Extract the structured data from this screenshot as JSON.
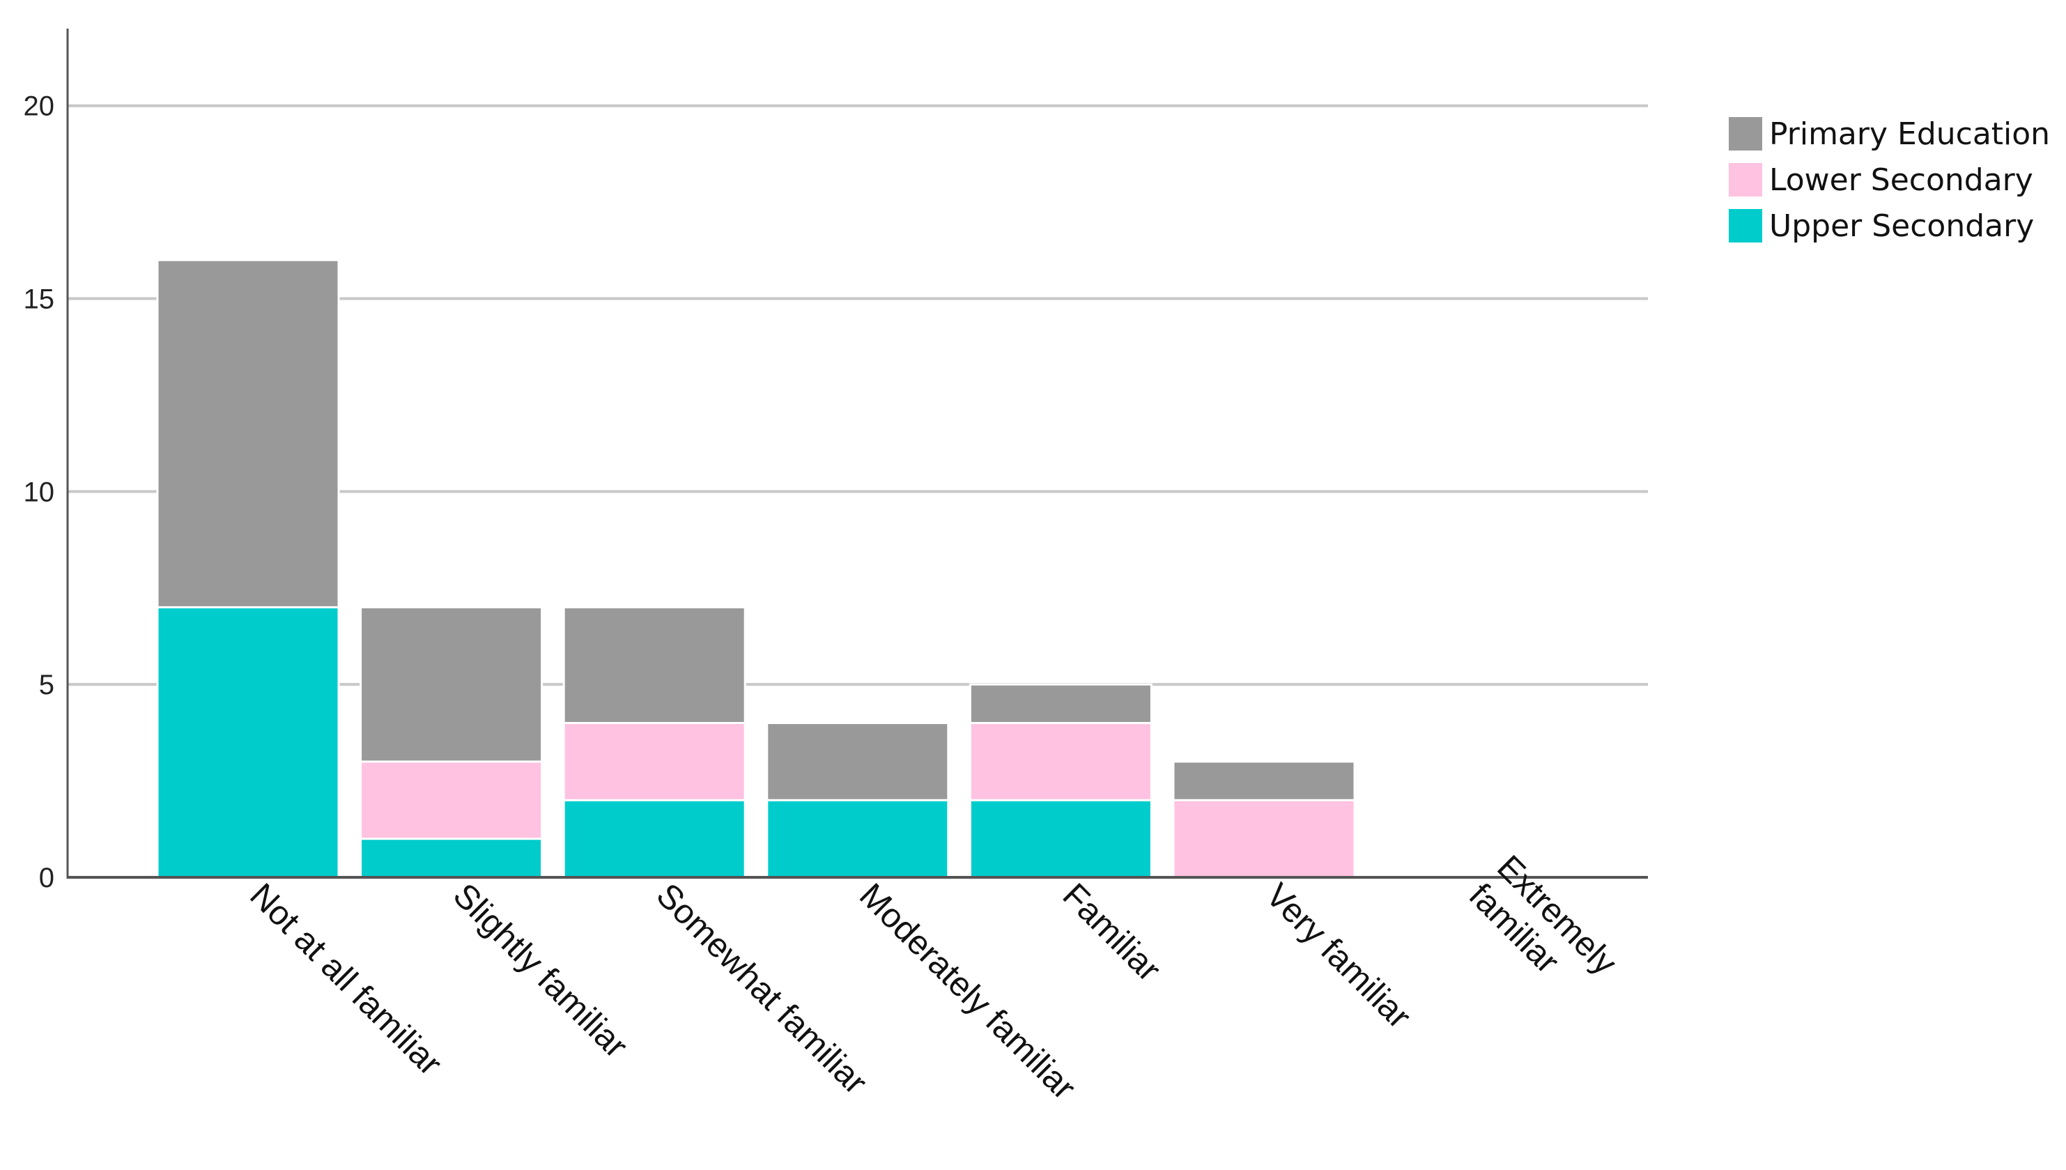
{
  "chart_data": {
    "type": "bar",
    "stacked": true,
    "title": "",
    "xlabel": "",
    "ylabel": "",
    "ylim": [
      0,
      22
    ],
    "yticks": [
      0,
      5,
      10,
      15,
      20
    ],
    "grid": "horizontal",
    "legend_position": "top-right",
    "categories": [
      "Not at all familiar",
      "Slightly familiar",
      "Somewhat familiar",
      "Moderately familiar",
      "Familiar",
      "Very familiar",
      "Extremely familiar"
    ],
    "category_lines": [
      [
        "Not at all familiar"
      ],
      [
        "Slightly familiar"
      ],
      [
        "Somewhat familiar"
      ],
      [
        "Moderately familiar"
      ],
      [
        "Familiar"
      ],
      [
        "Very familiar"
      ],
      [
        "Extremely",
        "familiar"
      ]
    ],
    "series": [
      {
        "name": "Upper Secondary",
        "color": "#00cccc",
        "values": [
          7,
          1,
          2,
          2,
          2,
          0,
          0
        ]
      },
      {
        "name": "Lower Secondary",
        "color": "#ffc2e1",
        "values": [
          0,
          2,
          2,
          0,
          2,
          2,
          0
        ]
      },
      {
        "name": "Primary Education",
        "color": "#999999",
        "values": [
          9,
          4,
          3,
          2,
          1,
          1,
          0
        ]
      }
    ],
    "legend_order": [
      "Primary Education",
      "Lower Secondary",
      "Upper Secondary"
    ]
  },
  "colors": {
    "grid": "#c8c8c8",
    "axis": "#555555",
    "bar_separator": "#ffffff"
  }
}
